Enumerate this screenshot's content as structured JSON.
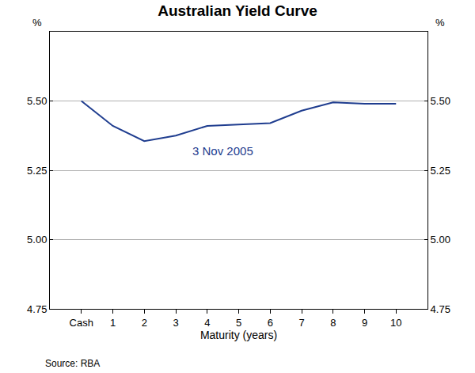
{
  "chart_data": {
    "type": "line",
    "title": "Australian Yield Curve",
    "xlabel": "Maturity (years)",
    "ylabel": "%",
    "source": "Source: RBA",
    "categories": [
      "Cash",
      "1",
      "2",
      "3",
      "4",
      "5",
      "6",
      "7",
      "8",
      "9",
      "10"
    ],
    "values": [
      5.5,
      5.41,
      5.355,
      5.375,
      5.41,
      5.415,
      5.42,
      5.465,
      5.495,
      5.49,
      5.49
    ],
    "color": "#1f3d8f",
    "ylim": [
      4.75,
      5.75
    ],
    "yticks": [
      {
        "value": 4.75,
        "label": "4.75"
      },
      {
        "value": 5.0,
        "label": "5.00"
      },
      {
        "value": 5.25,
        "label": "5.25"
      },
      {
        "value": 5.5,
        "label": "5.50"
      }
    ],
    "grid": true,
    "annotations": [
      {
        "text": "3 Nov 2005",
        "x": 4.5,
        "y": 5.32
      }
    ]
  }
}
